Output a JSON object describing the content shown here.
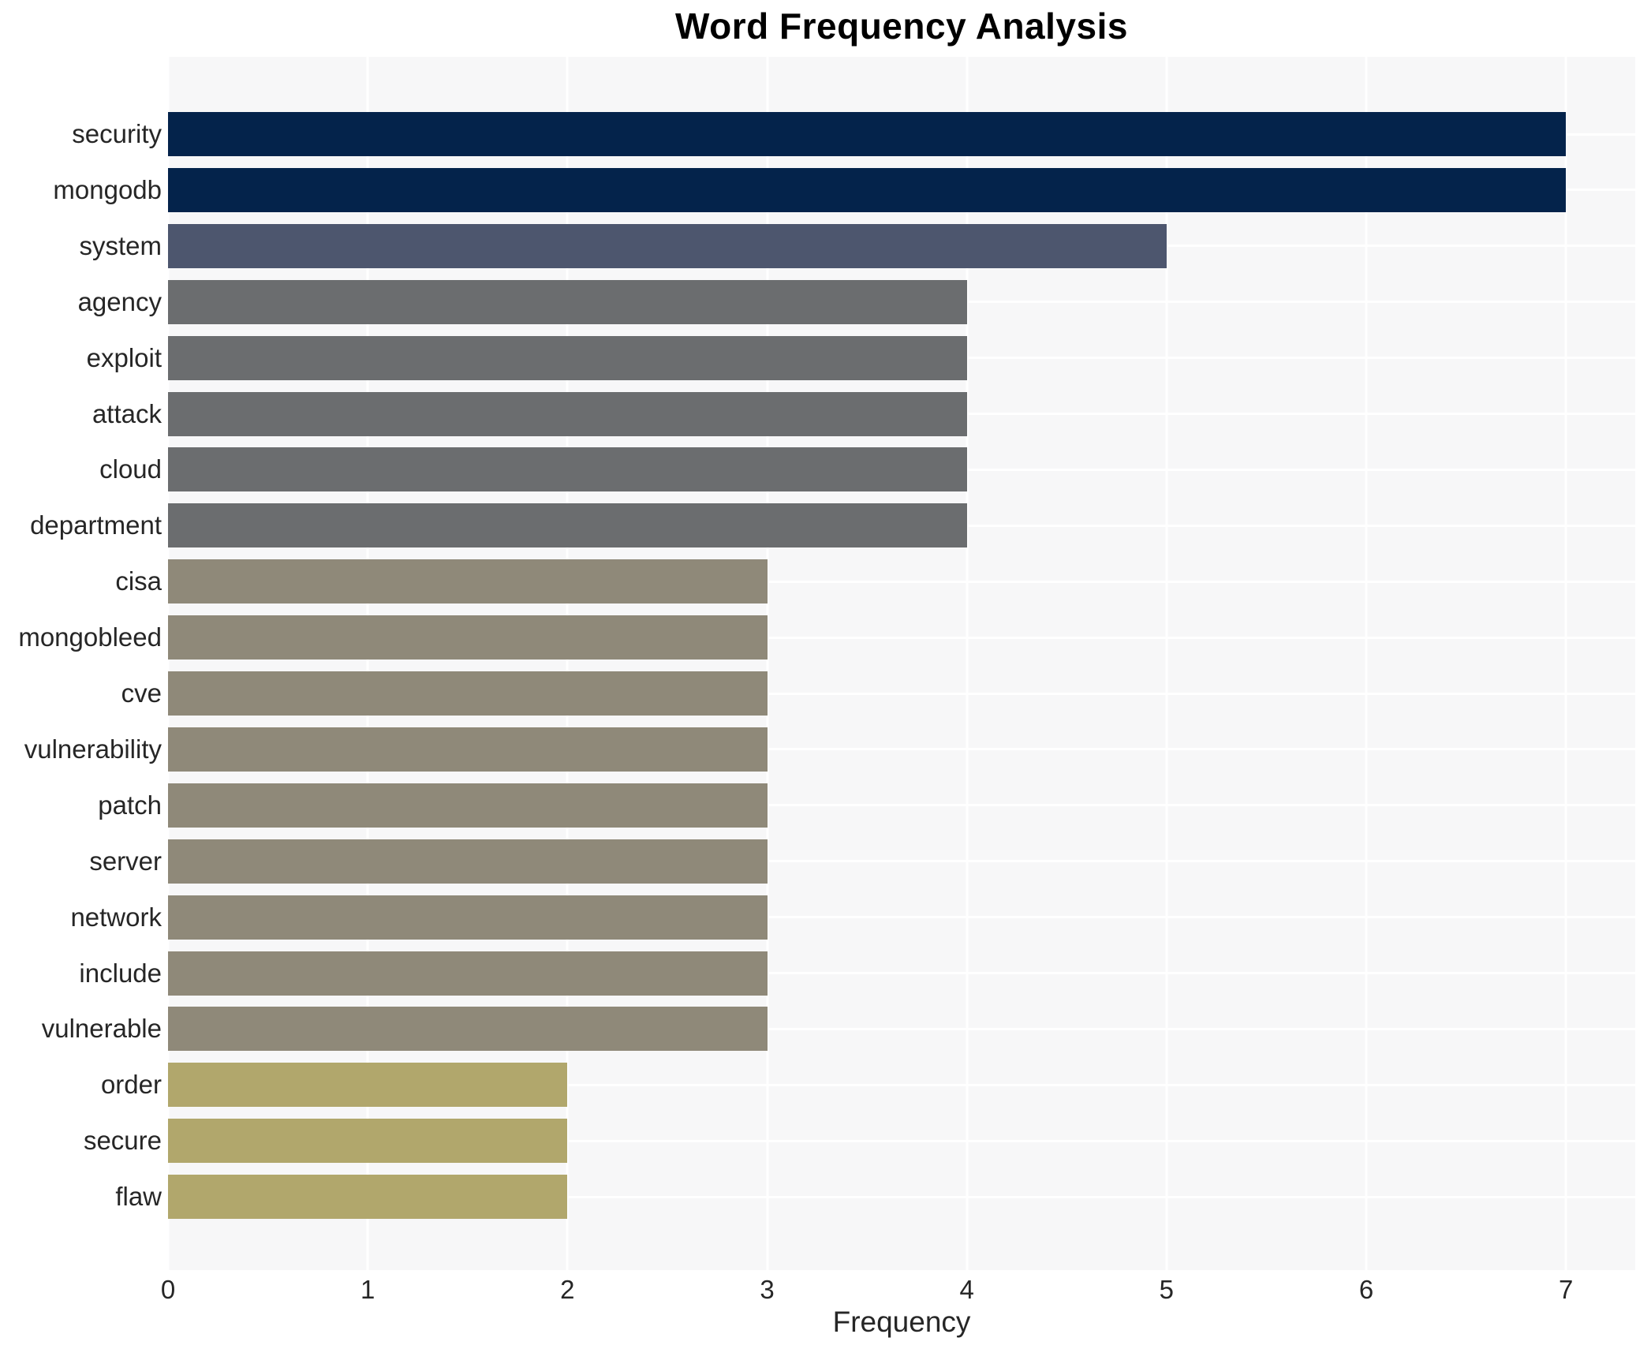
{
  "chart_data": {
    "type": "bar",
    "orientation": "horizontal",
    "title": "Word Frequency Analysis",
    "xlabel": "Frequency",
    "ylabel": "",
    "categories": [
      "security",
      "mongodb",
      "system",
      "agency",
      "exploit",
      "attack",
      "cloud",
      "department",
      "cisa",
      "mongobleed",
      "cve",
      "vulnerability",
      "patch",
      "server",
      "network",
      "include",
      "vulnerable",
      "order",
      "secure",
      "flaw"
    ],
    "values": [
      7,
      7,
      5,
      4,
      4,
      4,
      4,
      4,
      3,
      3,
      3,
      3,
      3,
      3,
      3,
      3,
      3,
      2,
      2,
      2
    ],
    "x_ticks": [
      0,
      1,
      2,
      3,
      4,
      5,
      6,
      7
    ],
    "xlim": [
      0,
      7.35
    ],
    "grid": "white major gridlines on light gray panel",
    "legend": "none",
    "colors": {
      "bar_by_value": {
        "7": "#04234b",
        "5": "#4d566e",
        "4": "#6b6d6f",
        "3": "#8f8979",
        "2": "#b1a76c"
      },
      "panel_background": "#f7f7f8",
      "gridline": "#ffffff",
      "axis_text": "#262626",
      "title_text": "#000000"
    }
  }
}
